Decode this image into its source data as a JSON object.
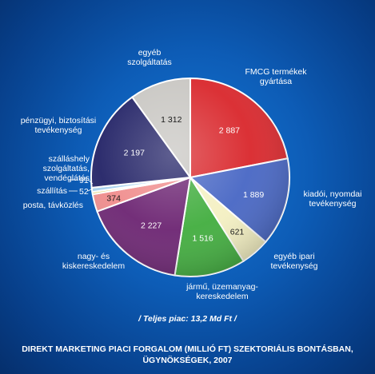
{
  "title": "DIREKT MARKETING PIACI FORGALOM (MILLIÓ FT) SZEKTORIÁLIS BONTÁSBAN, ÜGYNÖKSÉGEK, 2007",
  "total_label": "/ Teljes piac: 13,2 Md Ft /",
  "labels": {
    "egyeb_szolgaltatas": "egyéb\nszolgáltatás",
    "fmcg": "FMCG termékek\ngyártása",
    "penzugyi": "pénzügyi, biztosítási\ntevékenység",
    "kiadoi": "kiadói, nyomdai\ntevékenység",
    "szallashely": "szálláshely\nszolgáltatás,\nvendéglátás",
    "szallitas": "szállítás",
    "posta": "posta, távközlés",
    "egyeb_ipari": "egyéb ipari\ntevékenység",
    "nagy_kisker": "nagy- és\nkiskereskedelem",
    "jarmu": "jármű, üzemanyag-\nkereskedelem",
    "value_91": "91",
    "value_52": "52"
  },
  "chart_data": {
    "type": "pie",
    "title": "DIREKT MARKETING PIACI FORGALOM (MILLIÓ FT) SZEKTORIÁLIS BONTÁSBAN, ÜGYNÖKSÉGEK, 2007",
    "unit": "millió Ft",
    "total": "13,2 Md Ft",
    "slices": [
      {
        "label": "FMCG termékek gyártása",
        "value": 2887,
        "display": "2 887",
        "color": "#d9262b"
      },
      {
        "label": "kiadói, nyomdai tevékenység",
        "value": 1889,
        "display": "1 889",
        "color": "#4766c4"
      },
      {
        "label": "egyéb ipari tevékenység",
        "value": 621,
        "display": "621",
        "color": "#f4f0c2"
      },
      {
        "label": "jármű, üzemanyag-kereskedelem",
        "value": 1516,
        "display": "1 516",
        "color": "#41ad3e"
      },
      {
        "label": "nagy- és kiskereskedelem",
        "value": 2227,
        "display": "2 227",
        "color": "#6c2472"
      },
      {
        "label": "posta, távközlés",
        "value": 374,
        "display": "374",
        "color": "#f08c8c"
      },
      {
        "label": "szállítás",
        "value": 52,
        "display": "52",
        "color": "#e8d878"
      },
      {
        "label": "szálláshely szolgáltatás, vendéglátás",
        "value": 91,
        "display": "91",
        "color": "#a8d2ef"
      },
      {
        "label": "pénzügyi, biztosítási tevékenység",
        "value": 2197,
        "display": "2 197",
        "color": "#222266"
      },
      {
        "label": "egyéb szolgáltatás",
        "value": 1312,
        "display": "1 312",
        "color": "#c8c6c2"
      }
    ]
  }
}
